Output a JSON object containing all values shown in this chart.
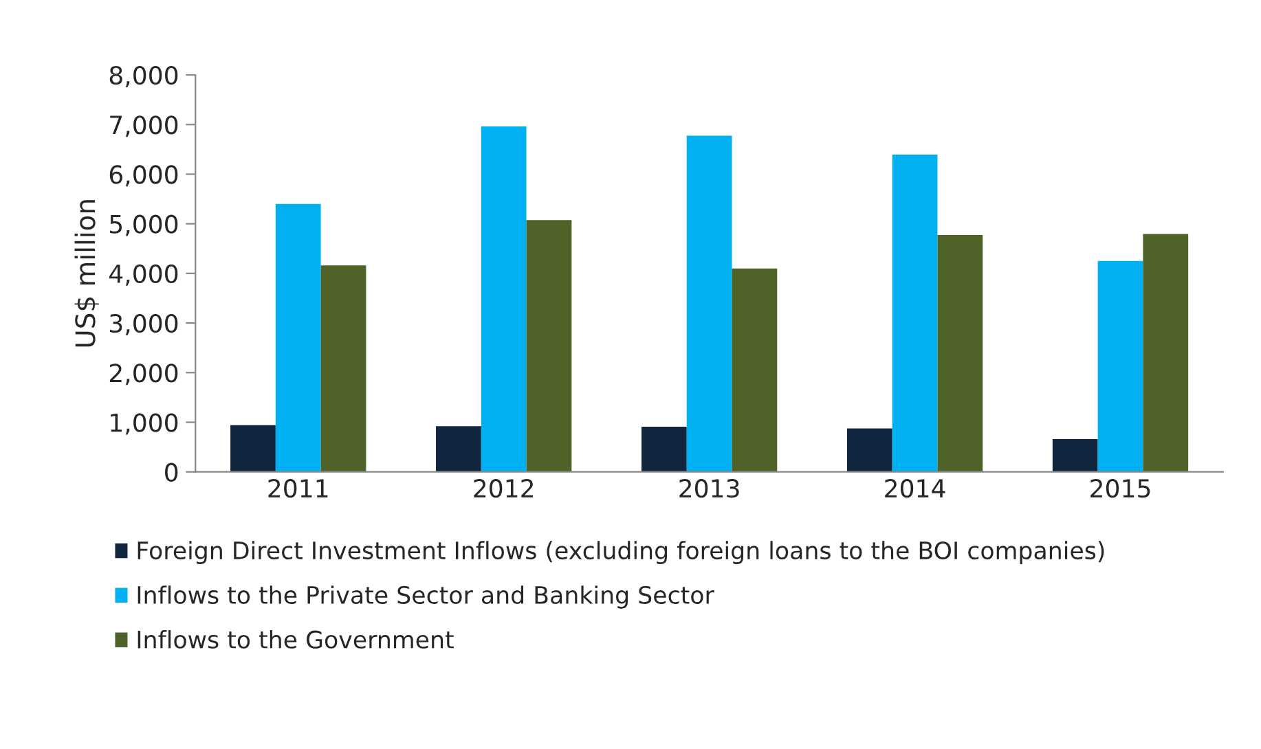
{
  "chart_data": {
    "type": "bar",
    "ylabel": "US$ million",
    "categories": [
      "2011",
      "2012",
      "2013",
      "2014",
      "2015"
    ],
    "series": [
      {
        "name": "Foreign Direct Investment Inflows (excluding foreign loans to the BOI companies)",
        "color": "#12253f",
        "values": [
          940,
          920,
          910,
          875,
          660
        ]
      },
      {
        "name": "Inflows to the Private Sector and Banking Sector",
        "color": "#00b0f0",
        "values": [
          5400,
          6960,
          6775,
          6395,
          4250
        ]
      },
      {
        "name": "Inflows to the Government",
        "color": "#4f6228",
        "values": [
          4160,
          5075,
          4100,
          4775,
          4795
        ]
      }
    ],
    "ylim": [
      0,
      8000
    ],
    "yticks": [
      {
        "value": 0,
        "label": "0"
      },
      {
        "value": 1000,
        "label": "1,000"
      },
      {
        "value": 2000,
        "label": "2,000"
      },
      {
        "value": 3000,
        "label": "3,000"
      },
      {
        "value": 4000,
        "label": "4,000"
      },
      {
        "value": 5000,
        "label": "5,000"
      },
      {
        "value": 6000,
        "label": "6,000"
      },
      {
        "value": 7000,
        "label": "7,000"
      },
      {
        "value": 8000,
        "label": "8,000"
      }
    ],
    "grid": false,
    "legend": "bottom"
  }
}
